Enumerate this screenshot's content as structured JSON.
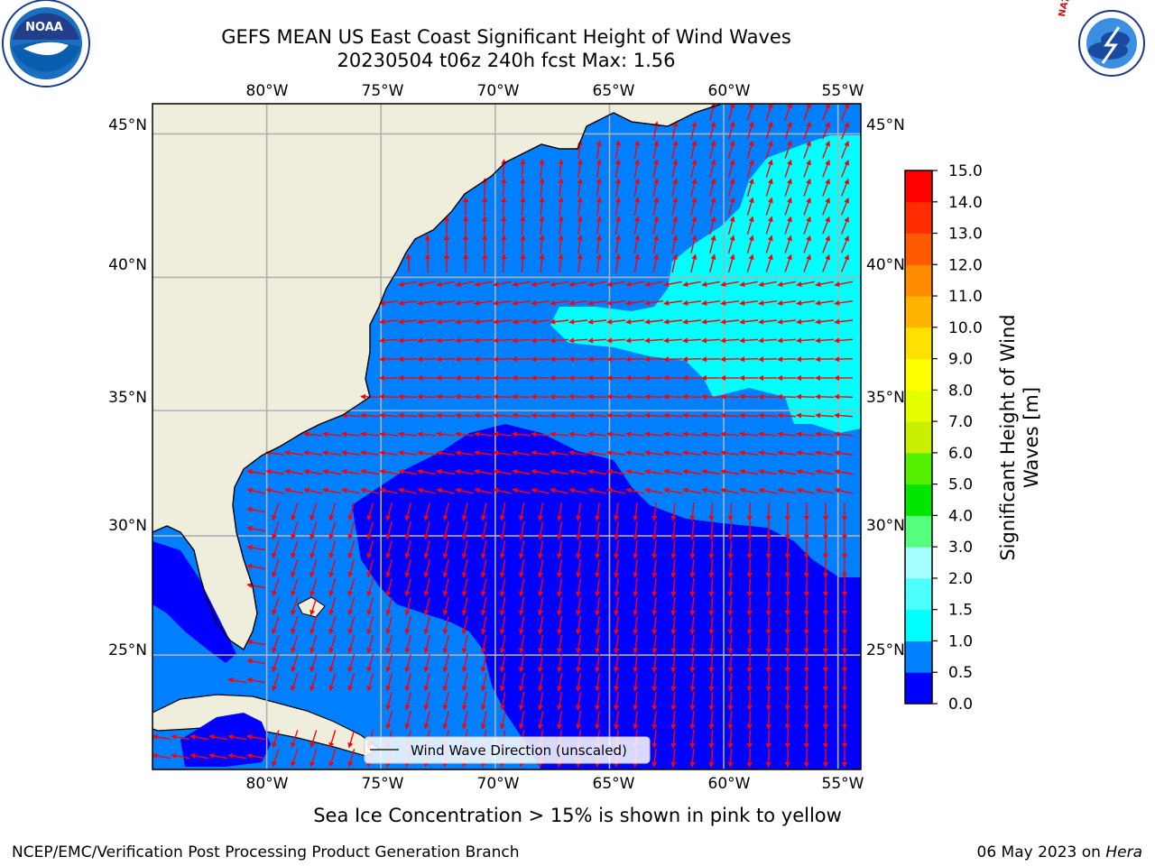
{
  "title": {
    "line1": "GEFS MEAN US East Coast Significant Height of Wind Waves",
    "line2": "20230504 t06z 240h fcst   Max: 1.56"
  },
  "map": {
    "extent": {
      "lon_min": -85,
      "lon_max": -54,
      "lat_min": 20,
      "lat_max": 46
    },
    "lon_ticks_top": [
      "80°W",
      "75°W",
      "70°W",
      "65°W",
      "60°W",
      "55°W"
    ],
    "lon_ticks_bottom": [
      "80°W",
      "75°W",
      "70°W",
      "65°W",
      "60°W",
      "55°W"
    ],
    "lat_ticks_left": [
      "45°N",
      "40°N",
      "35°N",
      "30°N",
      "25°N"
    ],
    "lat_ticks_right": [
      "45°N",
      "40°N",
      "35°N",
      "30°N",
      "25°N"
    ],
    "colors": {
      "land": "#efeedc",
      "class_0_0_5": "#0000ff",
      "class_0_5_1_0": "#0080ff",
      "class_1_0_1_5": "#00ffff",
      "arrows": "#ff0000",
      "gridlines": "#b0b0b0"
    },
    "legend_label": "Wind Wave Direction (unscaled)"
  },
  "colorbar": {
    "label_line1": "Significant Height of Wind",
    "label_line2": "Waves [m]",
    "ticks": [
      "0.0",
      "0.5",
      "1.0",
      "1.5",
      "2.0",
      "3.0",
      "4.0",
      "5.0",
      "6.0",
      "7.0",
      "8.0",
      "9.0",
      "10.0",
      "11.0",
      "12.0",
      "13.0",
      "14.0",
      "15.0"
    ],
    "colors": [
      "#0000ff",
      "#0080ff",
      "#00ffff",
      "#4dffff",
      "#a6ffff",
      "#53ff7d",
      "#00e600",
      "#54f000",
      "#c8f000",
      "#e6ff00",
      "#ffff00",
      "#ffe100",
      "#ffb400",
      "#ff8c00",
      "#ff5a00",
      "#ff2d00",
      "#ff0000"
    ]
  },
  "footer": {
    "note": "Sea Ice Concentration > 15% is shown in pink to yellow",
    "credit": "NCEP/EMC/Verification Post Processing Product Generation Branch",
    "date": "06 May 2023 on ",
    "machine": "Hera"
  },
  "logos": {
    "left": {
      "text": "NOAA",
      "icon": "noaa-logo-icon"
    },
    "right": {
      "text": "NATIONAL WEATHER SERVICE",
      "icon": "nws-logo-icon"
    }
  }
}
